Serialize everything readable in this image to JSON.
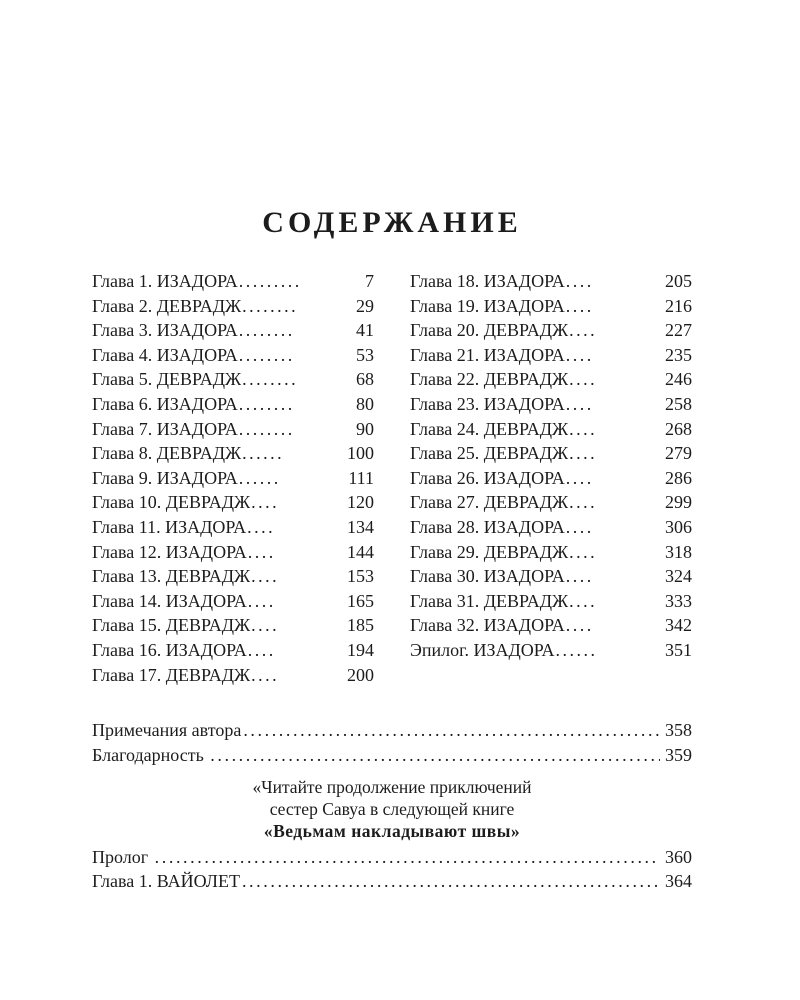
{
  "title": "СОДЕРЖАНИЕ",
  "toc": {
    "left_column": [
      {
        "label": "Глава 1. ИЗАДОРА",
        "dots": ".........",
        "page": "7"
      },
      {
        "label": "Глава 2. ДЕВРАДЖ",
        "dots": "........",
        "page": "29"
      },
      {
        "label": "Глава 3. ИЗАДОРА",
        "dots": "........",
        "page": "41"
      },
      {
        "label": "Глава 4. ИЗАДОРА",
        "dots": "........",
        "page": "53"
      },
      {
        "label": "Глава 5. ДЕВРАДЖ",
        "dots": "........",
        "page": "68"
      },
      {
        "label": "Глава 6. ИЗАДОРА",
        "dots": "........",
        "page": "80"
      },
      {
        "label": "Глава 7. ИЗАДОРА",
        "dots": "........",
        "page": "90"
      },
      {
        "label": "Глава 8. ДЕВРАДЖ",
        "dots": "......",
        "page": "100"
      },
      {
        "label": "Глава 9. ИЗАДОРА",
        "dots": "......",
        "page": "111"
      },
      {
        "label": "Глава 10. ДЕВРАДЖ",
        "dots": "....",
        "page": "120"
      },
      {
        "label": "Глава 11. ИЗАДОРА",
        "dots": "....",
        "page": "134"
      },
      {
        "label": "Глава 12. ИЗАДОРА",
        "dots": "....",
        "page": "144"
      },
      {
        "label": "Глава 13. ДЕВРАДЖ",
        "dots": "....",
        "page": "153"
      },
      {
        "label": "Глава 14. ИЗАДОРА",
        "dots": "....",
        "page": "165"
      },
      {
        "label": "Глава 15. ДЕВРАДЖ",
        "dots": "....",
        "page": "185"
      },
      {
        "label": "Глава 16. ИЗАДОРА",
        "dots": "....",
        "page": "194"
      },
      {
        "label": "Глава 17. ДЕВРАДЖ",
        "dots": "....",
        "page": "200"
      }
    ],
    "right_column": [
      {
        "label": "Глава 18. ИЗАДОРА",
        "dots": "....",
        "page": "205"
      },
      {
        "label": "Глава 19. ИЗАДОРА",
        "dots": "....",
        "page": "216"
      },
      {
        "label": "Глава 20. ДЕВРАДЖ",
        "dots": "....",
        "page": "227"
      },
      {
        "label": "Глава 21. ИЗАДОРА",
        "dots": "....",
        "page": "235"
      },
      {
        "label": "Глава 22. ДЕВРАДЖ",
        "dots": "....",
        "page": "246"
      },
      {
        "label": "Глава 23. ИЗАДОРА",
        "dots": "....",
        "page": "258"
      },
      {
        "label": "Глава 24. ДЕВРАДЖ",
        "dots": "....",
        "page": "268"
      },
      {
        "label": "Глава 25. ДЕВРАДЖ",
        "dots": "....",
        "page": "279"
      },
      {
        "label": "Глава 26. ИЗАДОРА",
        "dots": "....",
        "page": "286"
      },
      {
        "label": "Глава 27. ДЕВРАДЖ",
        "dots": "....",
        "page": "299"
      },
      {
        "label": "Глава 28. ИЗАДОРА",
        "dots": "....",
        "page": "306"
      },
      {
        "label": "Глава 29. ДЕВРАДЖ",
        "dots": "....",
        "page": "318"
      },
      {
        "label": "Глава 30. ИЗАДОРА",
        "dots": "....",
        "page": "324"
      },
      {
        "label": "Глава 31. ДЕВРАДЖ",
        "dots": "....",
        "page": "333"
      },
      {
        "label": "Глава 32. ИЗАДОРА",
        "dots": "....",
        "page": "342"
      },
      {
        "label": "Эпилог. ИЗАДОРА",
        "dots": "......",
        "page": "351"
      }
    ]
  },
  "backmatter": [
    {
      "label": "Примечания автора",
      "page": "358"
    },
    {
      "label": "Благодарность ",
      "page": "359"
    }
  ],
  "promo": {
    "line1": "«Читайте продолжение приключений",
    "line2": "сестер Савуа в следующей книге",
    "line3": "«Ведьмам накладывают швы»"
  },
  "sequel": [
    {
      "label": "Пролог ",
      "page": "360"
    },
    {
      "label": "Глава 1. ВАЙОЛЕТ",
      "page": "364"
    }
  ]
}
